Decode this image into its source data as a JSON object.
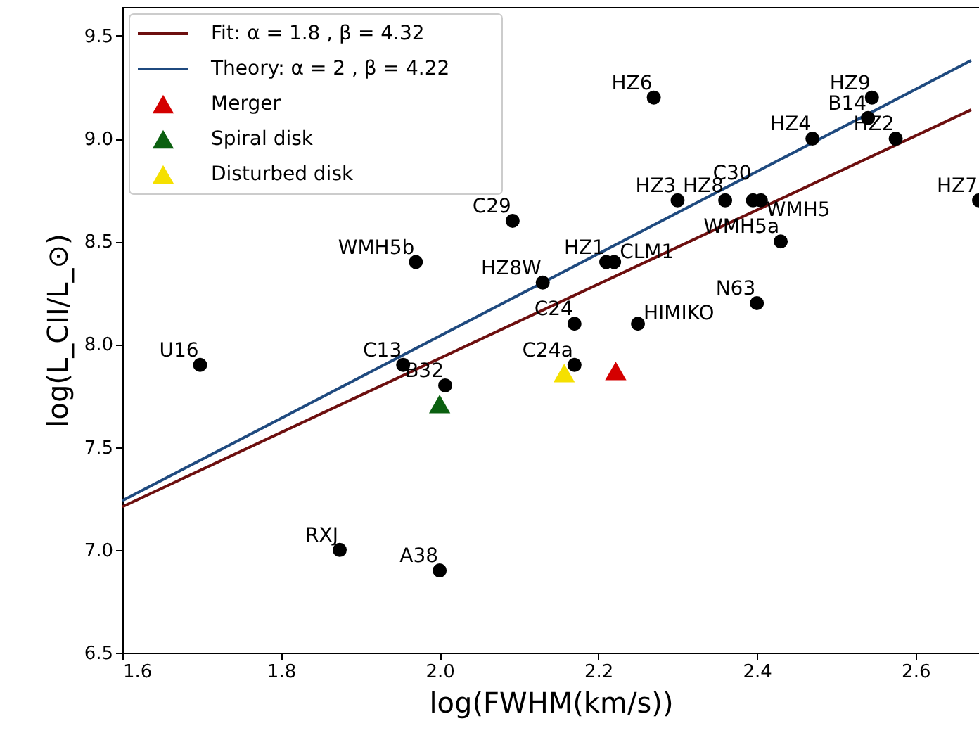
{
  "chart_data": {
    "type": "scatter",
    "xlabel": "log(FWHM(km/s))",
    "ylabel": "log(L_CII/L_⊙)",
    "xlim": [
      1.6,
      2.68
    ],
    "ylim": [
      6.5,
      9.64
    ],
    "xticks": [
      1.6,
      1.8,
      {
        "value": 2,
        "label": "2.0"
      },
      2.2,
      2.4,
      2.6
    ],
    "yticks": [
      6.5,
      {
        "value": 7,
        "label": "7.0"
      },
      7.5,
      {
        "value": 8,
        "label": "8.0"
      },
      8.5,
      {
        "value": 9,
        "label": "9.0"
      },
      9.5
    ],
    "grid": false,
    "legend": "top left",
    "series": [
      {
        "type": "line",
        "name": "Fit: α = 1.8 , β = 4.32",
        "color": "#6d0f0f",
        "x": [
          1.6,
          2.67
        ],
        "values": [
          7.21,
          9.14
        ],
        "line_style": "solid"
      },
      {
        "type": "line",
        "name": "Theory: α = 2 , β = 4.22",
        "color": "#1f4a7f",
        "x": [
          1.6,
          2.67
        ],
        "values": [
          7.24,
          9.38
        ],
        "line_style": "solid"
      },
      {
        "color": "#000000",
        "marker": "circle",
        "x": [
          1.698,
          1.954,
          2.007,
          1.97,
          2.092,
          2.13,
          2.27,
          2.21,
          2.22,
          2.17,
          2.17,
          2.25,
          2.3,
          2.36,
          2.395,
          2.405,
          2.43,
          2.4,
          2.47,
          2.545,
          2.54,
          2.575,
          2.68,
          1.874,
          2.0
        ],
        "values": [
          7.9,
          7.9,
          7.8,
          8.4,
          8.6,
          8.3,
          9.2,
          8.4,
          8.4,
          8.1,
          7.9,
          8.1,
          8.7,
          8.7,
          8.7,
          8.7,
          8.5,
          8.2,
          9.0,
          9.2,
          9.1,
          9.0,
          8.7,
          7.0,
          6.9
        ]
      },
      {
        "name": "Merger",
        "color": "#d40000",
        "marker": "triangle",
        "x": [
          2.222
        ],
        "values": [
          7.87
        ]
      },
      {
        "name": "Spiral disk",
        "color": "#0b6010",
        "marker": "triangle",
        "x": [
          2.0
        ],
        "values": [
          7.71
        ]
      },
      {
        "name": "Disturbed disk",
        "color": "#f5e000",
        "marker": "triangle",
        "x": [
          2.157
        ],
        "values": [
          7.86
        ]
      }
    ],
    "annotations": [
      {
        "text": "U16",
        "x": 1.698,
        "y": 7.9
      },
      {
        "text": "C13",
        "x": 1.954,
        "y": 7.9
      },
      {
        "text": "B32",
        "x": 2.007,
        "y": 7.8
      },
      {
        "text": "WMH5b",
        "x": 1.97,
        "y": 8.4
      },
      {
        "text": "C29",
        "x": 2.092,
        "y": 8.6
      },
      {
        "text": "HZ8W",
        "x": 2.13,
        "y": 8.3
      },
      {
        "text": "HZ6",
        "x": 2.27,
        "y": 9.2
      },
      {
        "text": "HZ1",
        "x": 2.21,
        "y": 8.4
      },
      {
        "text": "CLM1",
        "x": 2.22,
        "y": 8.4
      },
      {
        "text": "C24",
        "x": 2.17,
        "y": 8.1
      },
      {
        "text": "C24a",
        "x": 2.17,
        "y": 7.9
      },
      {
        "text": "HIMIKO",
        "x": 2.25,
        "y": 8.1
      },
      {
        "text": "HZ3",
        "x": 2.3,
        "y": 8.7
      },
      {
        "text": "HZ8",
        "x": 2.36,
        "y": 8.7
      },
      {
        "text": "C30",
        "x": 2.395,
        "y": 8.7
      },
      {
        "text": "WMH5",
        "x": 2.405,
        "y": 8.7
      },
      {
        "text": "WMH5a",
        "x": 2.43,
        "y": 8.5
      },
      {
        "text": "N63",
        "x": 2.4,
        "y": 8.2
      },
      {
        "text": "HZ4",
        "x": 2.47,
        "y": 9.0
      },
      {
        "text": "HZ9",
        "x": 2.545,
        "y": 9.2
      },
      {
        "text": "B14",
        "x": 2.54,
        "y": 9.1
      },
      {
        "text": "HZ2",
        "x": 2.575,
        "y": 9.0
      },
      {
        "text": "HZ7",
        "x": 2.68,
        "y": 8.7
      },
      {
        "text": "RXJ",
        "x": 1.874,
        "y": 7.0
      },
      {
        "text": "A38",
        "x": 2.0,
        "y": 6.9
      }
    ]
  }
}
